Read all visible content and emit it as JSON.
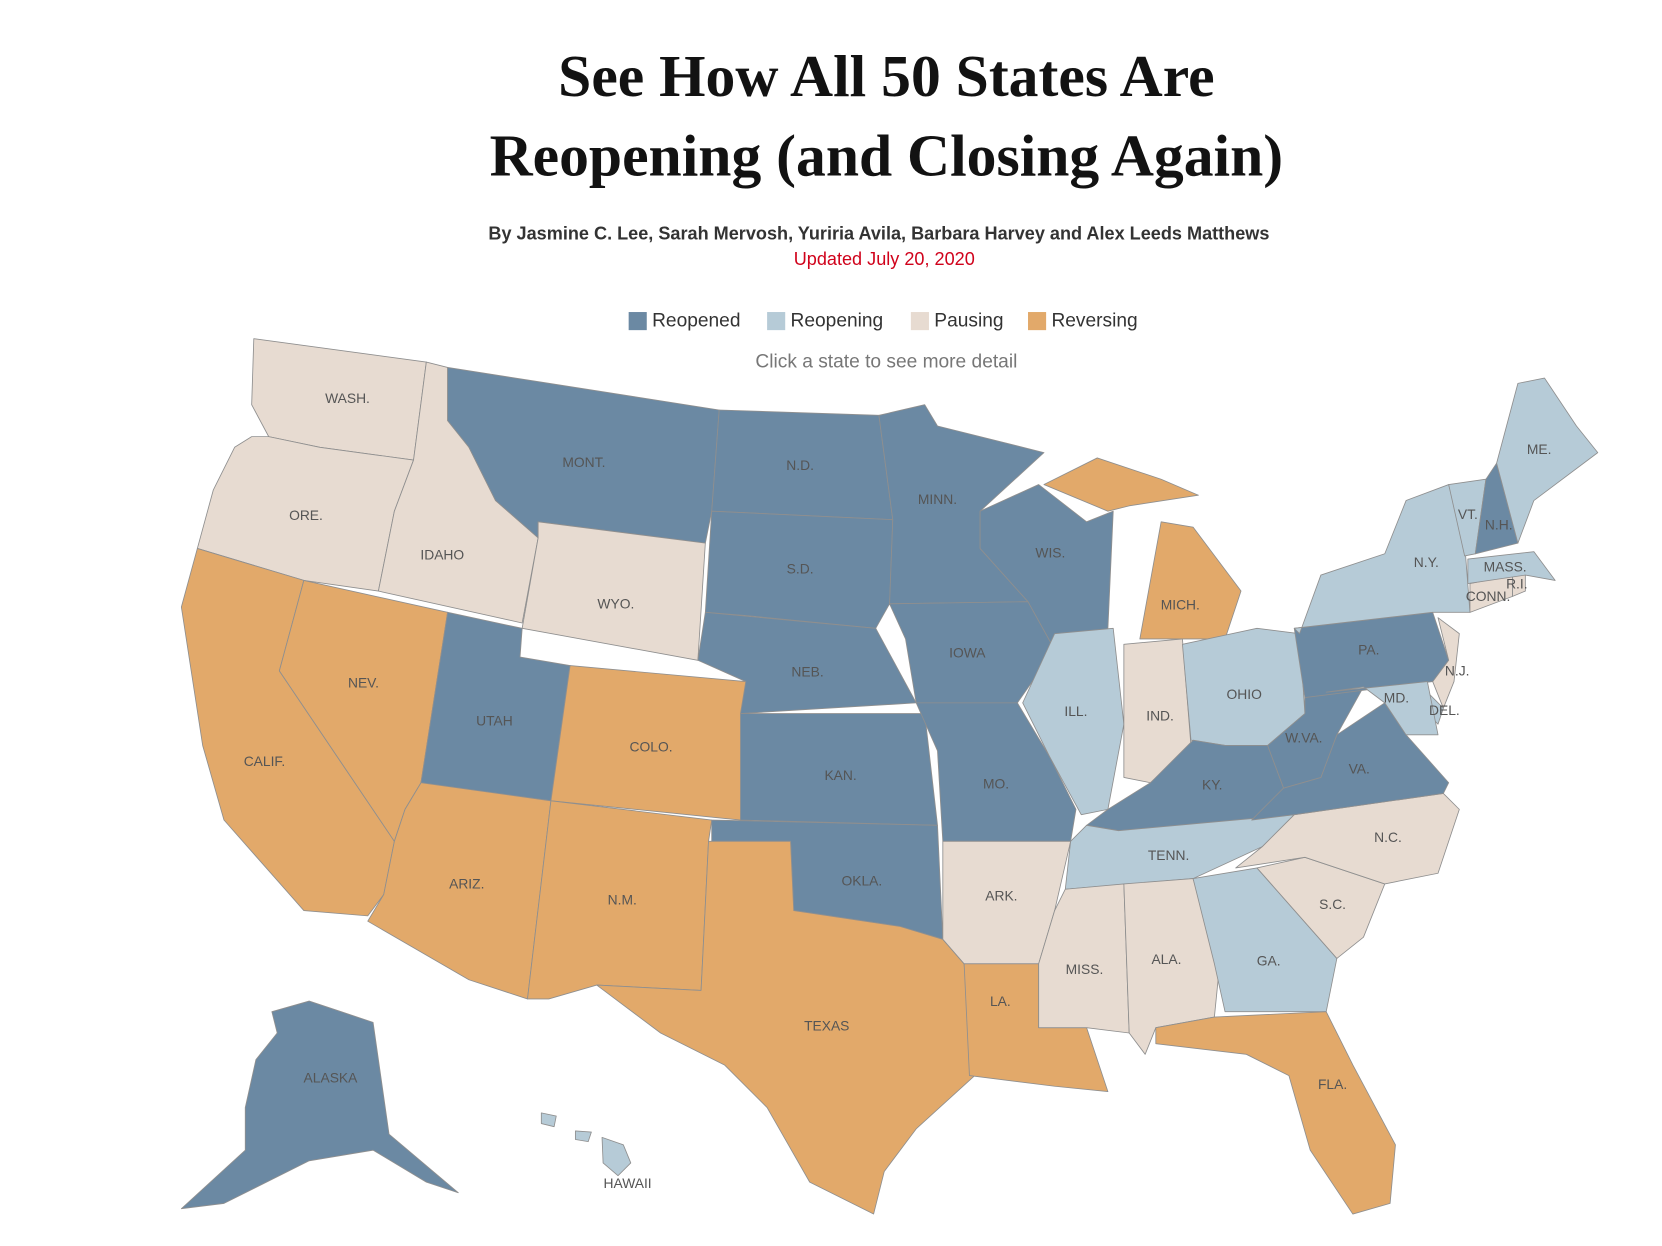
{
  "header": {
    "title_lines": [
      "See How All 50 States Are",
      "Reopening (and Closing Again)"
    ],
    "byline": "By Jasmine C. Lee, Sarah Mervosh, Yuriria Avila, Barbara Harvey and Alex Leeds Matthews",
    "updated": "Updated July 20, 2020"
  },
  "legend": [
    {
      "name": "Reopened",
      "color": "#6b89a3"
    },
    {
      "name": "Reopening",
      "color": "#b6cbd7"
    },
    {
      "name": "Pausing",
      "color": "#e7dbd1"
    },
    {
      "name": "Reversing",
      "color": "#e2a96a"
    }
  ],
  "instruction": "Click a state to see more detail",
  "states": [
    {
      "label": "WASH.",
      "status": "Pausing"
    },
    {
      "label": "ORE.",
      "status": "Pausing"
    },
    {
      "label": "CALIF.",
      "status": "Reversing"
    },
    {
      "label": "IDAHO",
      "status": "Pausing"
    },
    {
      "label": "NEV.",
      "status": "Reversing"
    },
    {
      "label": "MONT.",
      "status": "Reopened"
    },
    {
      "label": "WYO.",
      "status": "Pausing"
    },
    {
      "label": "UTAH",
      "status": "Reopened"
    },
    {
      "label": "ARIZ.",
      "status": "Reversing"
    },
    {
      "label": "COLO.",
      "status": "Reversing"
    },
    {
      "label": "N.M.",
      "status": "Reversing"
    },
    {
      "label": "N.D.",
      "status": "Reopened"
    },
    {
      "label": "S.D.",
      "status": "Reopened"
    },
    {
      "label": "NEB.",
      "status": "Reopened"
    },
    {
      "label": "KAN.",
      "status": "Reopened"
    },
    {
      "label": "OKLA.",
      "status": "Reopened"
    },
    {
      "label": "TEXAS",
      "status": "Reversing"
    },
    {
      "label": "MINN.",
      "status": "Reopened"
    },
    {
      "label": "IOWA",
      "status": "Reopened"
    },
    {
      "label": "MO.",
      "status": "Reopened"
    },
    {
      "label": "ARK.",
      "status": "Pausing"
    },
    {
      "label": "LA.",
      "status": "Reversing"
    },
    {
      "label": "WIS.",
      "status": "Reopened"
    },
    {
      "label": "ILL.",
      "status": "Reopening"
    },
    {
      "label": "MICH.",
      "status": "Reversing"
    },
    {
      "label": "IND.",
      "status": "Pausing"
    },
    {
      "label": "OHIO",
      "status": "Reopening"
    },
    {
      "label": "KY.",
      "status": "Reopened"
    },
    {
      "label": "TENN.",
      "status": "Reopening"
    },
    {
      "label": "MISS.",
      "status": "Pausing"
    },
    {
      "label": "ALA.",
      "status": "Pausing"
    },
    {
      "label": "GA.",
      "status": "Reopening"
    },
    {
      "label": "FLA.",
      "status": "Reversing"
    },
    {
      "label": "S.C.",
      "status": "Pausing"
    },
    {
      "label": "N.C.",
      "status": "Pausing"
    },
    {
      "label": "VA.",
      "status": "Reopened"
    },
    {
      "label": "W.VA.",
      "status": "Reopened"
    },
    {
      "label": "PA.",
      "status": "Reopened"
    },
    {
      "label": "N.Y.",
      "status": "Reopening"
    },
    {
      "label": "N.J.",
      "status": "Pausing"
    },
    {
      "label": "DEL.",
      "status": "Reopening"
    },
    {
      "label": "MD.",
      "status": "Reopening"
    },
    {
      "label": "CONN.",
      "status": "Pausing"
    },
    {
      "label": "R.I.",
      "status": "Pausing"
    },
    {
      "label": "MASS.",
      "status": "Reopening"
    },
    {
      "label": "VT.",
      "status": "Reopening"
    },
    {
      "label": "N.H.",
      "status": "Reopened"
    },
    {
      "label": "ME.",
      "status": "Reopening"
    },
    {
      "label": "ALASKA",
      "status": "Reopened"
    },
    {
      "label": "HAWAII",
      "status": "Reopening"
    }
  ]
}
